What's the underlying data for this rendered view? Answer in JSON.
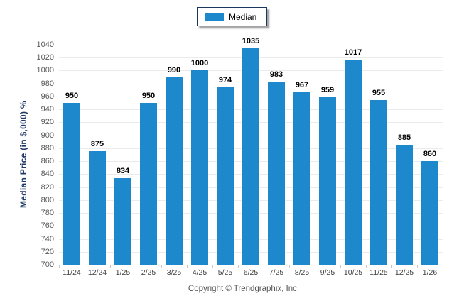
{
  "legend": {
    "items": [
      {
        "label": "Median",
        "color": "#1e88cd"
      }
    ]
  },
  "copyright": "Copyright © Trendgraphix, Inc.",
  "colors": {
    "bar": "#1e88cd",
    "grid": "#ebebeb",
    "axis": "#c8c8c8",
    "tick_label": "#595959",
    "x_label": "#3f3f3f",
    "value_label": "#000000",
    "legend_border": "#17375d",
    "axis_title": "#1f3864",
    "copyright": "#555555"
  },
  "chart_data": {
    "type": "bar",
    "title": "",
    "xlabel": "",
    "ylabel": "Median Price (in $,000) %",
    "categories": [
      "11/24",
      "12/24",
      "1/25",
      "2/25",
      "3/25",
      "4/25",
      "5/25",
      "6/25",
      "7/25",
      "8/25",
      "9/25",
      "10/25",
      "11/25",
      "12/25",
      "1/26"
    ],
    "values": [
      950,
      875,
      834,
      950,
      990,
      1000,
      974,
      1035,
      983,
      967,
      959,
      1017,
      955,
      885,
      860
    ],
    "series_name": "Median",
    "ylim": [
      700,
      1040
    ],
    "ytick_step": 20,
    "grid": "horizontal",
    "legend_position": "top-center",
    "data_labels": true
  }
}
